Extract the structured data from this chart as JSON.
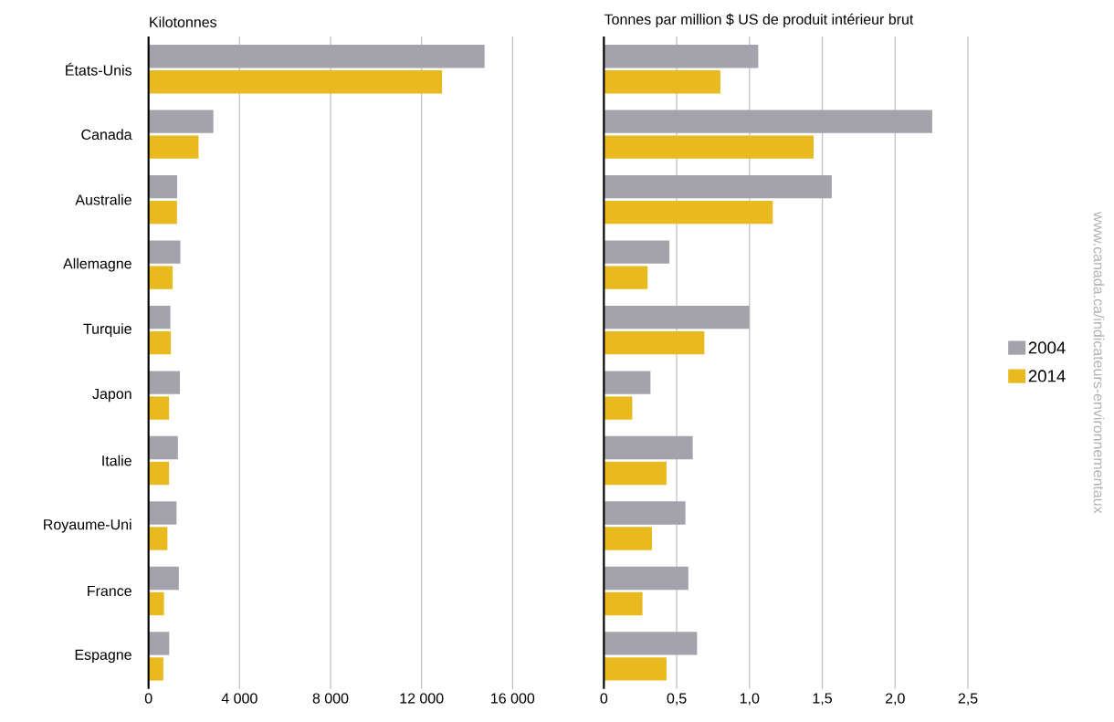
{
  "chart_data": [
    {
      "type": "bar",
      "orientation": "horizontal",
      "xlabel": "Kilotonnes",
      "categories": [
        "États-Unis",
        "Canada",
        "Australie",
        "Allemagne",
        "Turquie",
        "Japon",
        "Italie",
        "Royaume-Uni",
        "France",
        "Espagne"
      ],
      "series": [
        {
          "color": "#a4a2ab",
          "values": [
            14770,
            2850,
            1260,
            1400,
            960,
            1380,
            1290,
            1230,
            1330,
            910
          ]
        },
        {
          "color": "#e8ba20",
          "values": [
            12900,
            2200,
            1250,
            1060,
            980,
            900,
            900,
            830,
            680,
            650
          ]
        }
      ],
      "xlim": [
        0,
        16000
      ],
      "xticks": [
        0,
        {
          "value": 4000,
          "label": "4 000"
        },
        {
          "value": 8000,
          "label": "8 000"
        },
        {
          "value": 12000,
          "label": "12 000"
        },
        {
          "value": 16000,
          "label": "16 000"
        }
      ],
      "grid": "x"
    },
    {
      "type": "bar",
      "orientation": "horizontal",
      "xlabel": "Tonnes par million $ US de produit intérieur brut",
      "categories": [
        null,
        null,
        null,
        null,
        null,
        null,
        null,
        null,
        null,
        null
      ],
      "series": [
        {
          "name": "2004",
          "color": "#a4a2ab",
          "values": [
            1.06,
            2.255,
            1.565,
            0.45,
            1.0,
            0.32,
            0.61,
            0.56,
            0.58,
            0.64
          ]
        },
        {
          "name": "2014",
          "color": "#e8ba20",
          "values": [
            0.8,
            1.44,
            1.16,
            0.3,
            0.69,
            0.195,
            0.43,
            0.33,
            0.265,
            0.43
          ]
        }
      ],
      "xlim": [
        0,
        2.5
      ],
      "xticks": [
        0,
        {
          "value": 0.5,
          "label": "0,5"
        },
        {
          "value": 1.0,
          "label": "1,0"
        },
        {
          "value": 1.5,
          "label": "1,5"
        },
        {
          "value": 2.0,
          "label": "2,0"
        },
        {
          "value": 2.5,
          "label": "2,5"
        }
      ],
      "grid": "x",
      "legend": "right",
      "tick_labels": "x",
      "annotations": [
        "www.canada.ca/indicateurs-environnementaux"
      ]
    }
  ]
}
